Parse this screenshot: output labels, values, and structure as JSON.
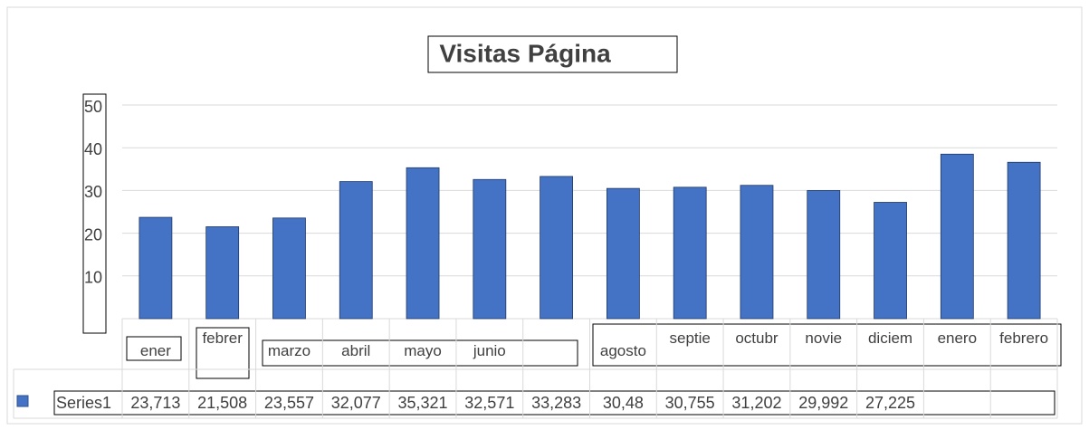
{
  "chart_data": {
    "type": "bar",
    "title": "Visitas Página",
    "categories": [
      "ener",
      "febrer",
      "marzo",
      "abril",
      "mayo",
      "junio",
      null,
      "agosto",
      "septie",
      "octubr",
      "novie",
      "diciem",
      "enero",
      "febrero"
    ],
    "series": [
      {
        "name": "Series1",
        "color": "#4472c4",
        "values": [
          23.713,
          21.508,
          23.557,
          32.077,
          35.321,
          32.571,
          33.283,
          30.48,
          30.755,
          31.202,
          29.992,
          27.225,
          38.5,
          36.6
        ],
        "value_labels": [
          "23,713",
          "21,508",
          "23,557",
          "32,077",
          "35,321",
          "32,571",
          "33,283",
          "30,48",
          "30,755",
          "31,202",
          "29,992",
          "27,225",
          null,
          null
        ]
      }
    ],
    "ylim": [
      0,
      50
    ],
    "yticks": [
      10,
      20,
      30,
      40,
      50
    ],
    "grid": true
  }
}
